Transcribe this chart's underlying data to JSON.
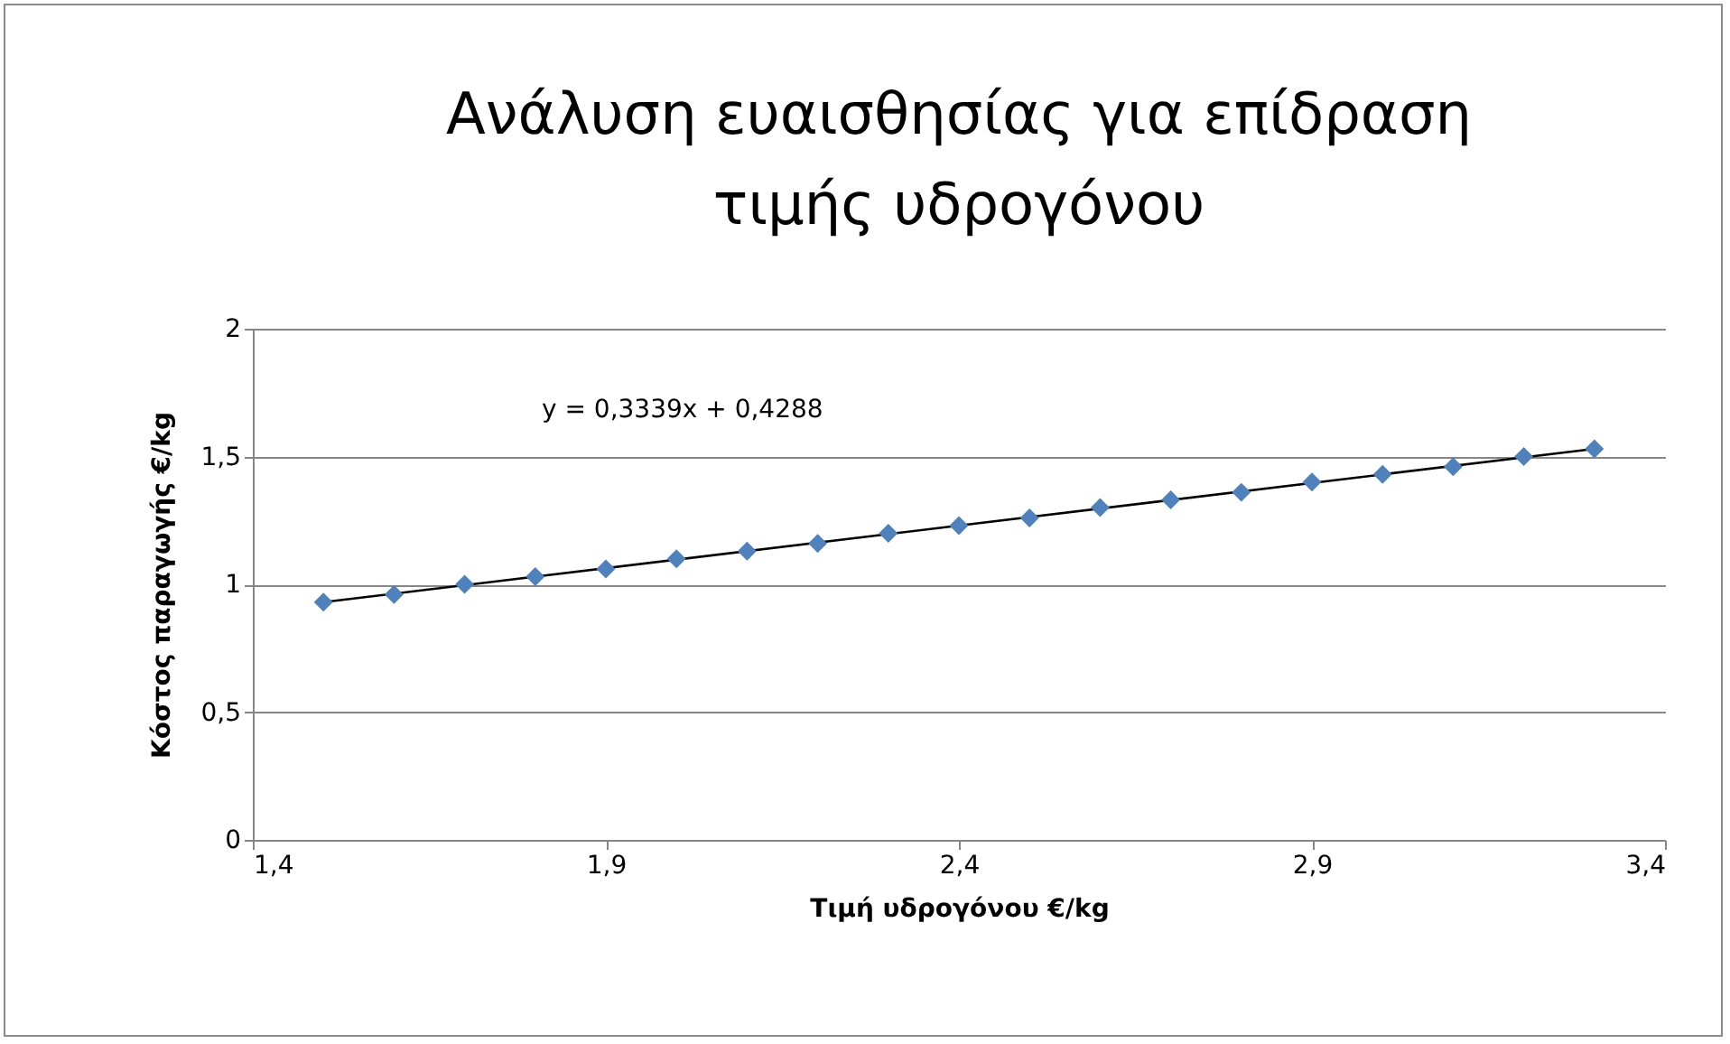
{
  "chart_data": {
    "type": "scatter",
    "title": "Ανάλυση ευαισθησίας για επίδραση τιμής υδρογόνου",
    "xlabel": "Τιμή υδρογόνου €/kg",
    "ylabel": "Κόστος παραγωγής €/kg",
    "series": [
      {
        "marker": "diamond",
        "color": "#4f81bd",
        "x": [
          1.5,
          1.6,
          1.7,
          1.8,
          1.9,
          2.0,
          2.1,
          2.2,
          2.3,
          2.4,
          2.5,
          2.6,
          2.7,
          2.8,
          2.9,
          3.0,
          3.1,
          3.2,
          3.3
        ],
        "values": [
          0.93,
          0.96,
          1.0,
          1.03,
          1.06,
          1.1,
          1.13,
          1.16,
          1.2,
          1.23,
          1.26,
          1.3,
          1.33,
          1.36,
          1.4,
          1.43,
          1.46,
          1.5,
          1.53
        ]
      },
      {
        "type": "line",
        "color": "#000000",
        "x": [
          1.5,
          3.3
        ],
        "values": [
          0.93,
          1.53
        ]
      }
    ],
    "annotations": [
      "y = 0,3339x + 0,4288"
    ],
    "xlim": [
      1.4,
      3.4
    ],
    "xticks": [
      {
        "value": 1.4,
        "label": "1,4"
      },
      {
        "value": 1.9,
        "label": "1,9"
      },
      {
        "value": 2.4,
        "label": "2,4"
      },
      {
        "value": 2.9,
        "label": "2,9"
      },
      {
        "value": 3.4,
        "label": "3,4"
      }
    ],
    "ylim": [
      0,
      2
    ],
    "yticks": [
      0,
      {
        "value": 0.5,
        "label": "0,5"
      },
      1,
      {
        "value": 1.5,
        "label": "1,5"
      },
      2
    ],
    "grid": "y"
  }
}
